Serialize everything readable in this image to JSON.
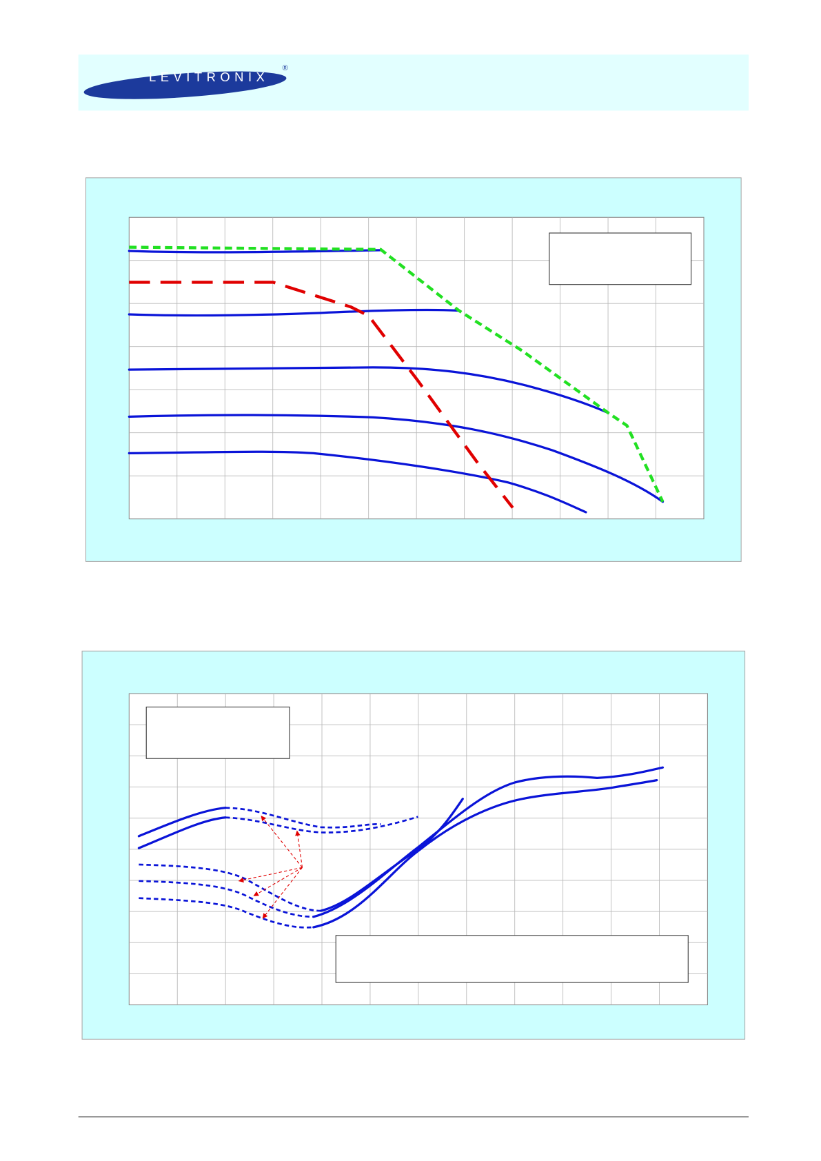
{
  "header": {
    "logo_text": "LEVITRONIX",
    "registered_mark": "®"
  }
}
